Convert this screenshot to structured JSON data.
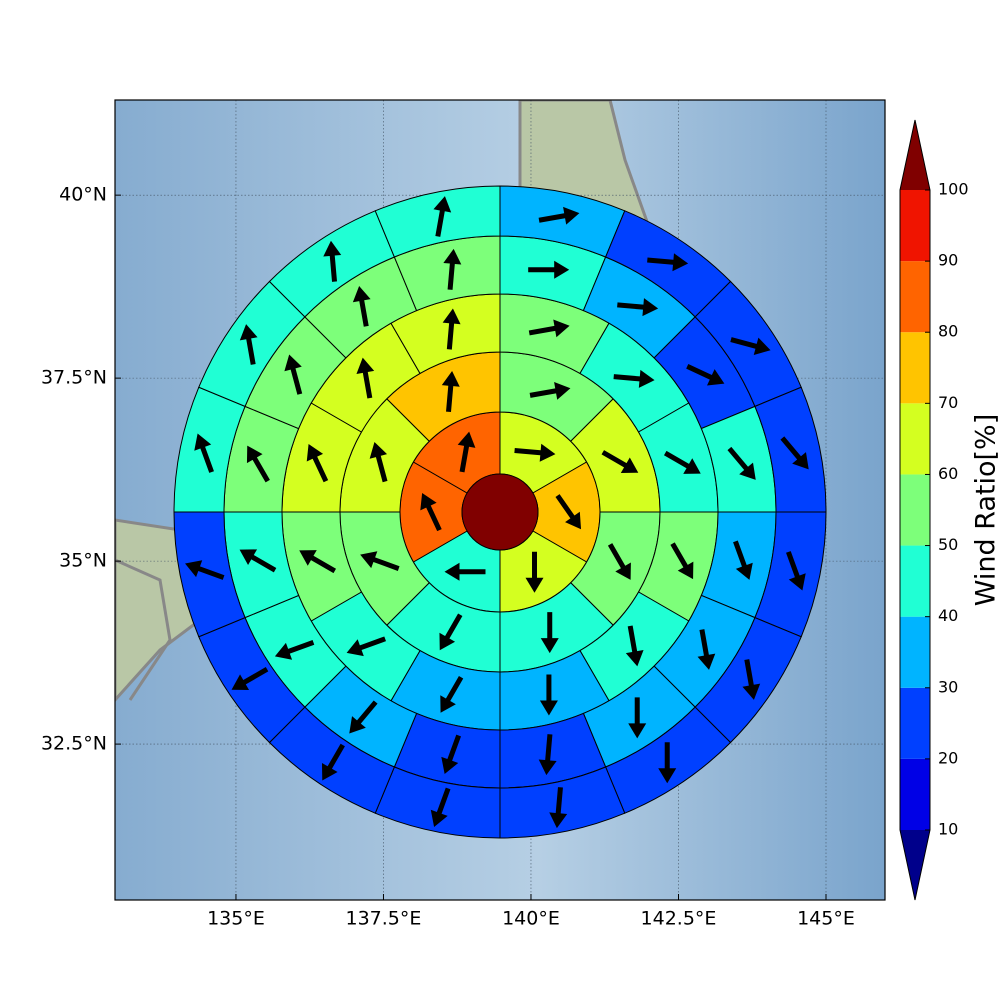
{
  "chart_data": {
    "type": "polar_map",
    "xlim": [
      132.95,
      146.0
    ],
    "ylim": [
      30.37,
      41.3
    ],
    "xticks": [
      {
        "value": 135,
        "label": "135°E"
      },
      {
        "value": 137.5,
        "label": "137.5°E"
      },
      {
        "value": 140,
        "label": "140°E"
      },
      {
        "value": 142.5,
        "label": "142.5°E"
      },
      {
        "value": 145,
        "label": "145°E"
      }
    ],
    "yticks": [
      {
        "value": 32.5,
        "label": "32.5°N"
      },
      {
        "value": 35,
        "label": "35°N"
      },
      {
        "value": 37.5,
        "label": "37.5°N"
      },
      {
        "value": 40,
        "label": "40°N"
      }
    ],
    "grid": true,
    "center_value": 105,
    "rings": [
      {
        "values": [
          65,
          75,
          65,
          45,
          85,
          85
        ],
        "directions": [
          95,
          145,
          180,
          270,
          335,
          10
        ]
      },
      {
        "values": [
          55,
          65,
          55,
          45,
          45,
          55,
          65,
          75
        ],
        "directions": [
          80,
          120,
          150,
          180,
          210,
          290,
          345,
          5
        ]
      },
      {
        "values": [
          55,
          45,
          45,
          55,
          45,
          35,
          35,
          45,
          55,
          65,
          65,
          65
        ],
        "directions": [
          80,
          95,
          120,
          150,
          170,
          180,
          210,
          250,
          300,
          335,
          350,
          5
        ]
      },
      {
        "values": [
          45,
          35,
          25,
          45,
          35,
          35,
          35,
          25,
          25,
          35,
          45,
          45,
          55,
          55,
          55,
          55
        ],
        "directions": [
          90,
          95,
          115,
          140,
          160,
          170,
          180,
          185,
          200,
          220,
          250,
          300,
          330,
          345,
          350,
          5
        ]
      },
      {
        "values": [
          35,
          25,
          25,
          25,
          25,
          25,
          25,
          25,
          25,
          25,
          25,
          25,
          45,
          45,
          45,
          45
        ],
        "directions": [
          80,
          95,
          105,
          140,
          160,
          170,
          180,
          185,
          200,
          210,
          240,
          290,
          340,
          350,
          355,
          10
        ]
      }
    ],
    "colorbar": {
      "label": "Wind Ratio[%]",
      "ticks": [
        10,
        20,
        30,
        40,
        50,
        60,
        70,
        80,
        90,
        100
      ],
      "colors": [
        "#00008b",
        "#0000e6",
        "#0040ff",
        "#00b4ff",
        "#20ffd4",
        "#7dff7a",
        "#d4ff20",
        "#ffc400",
        "#ff6400",
        "#f01400",
        "#800000"
      ]
    }
  }
}
